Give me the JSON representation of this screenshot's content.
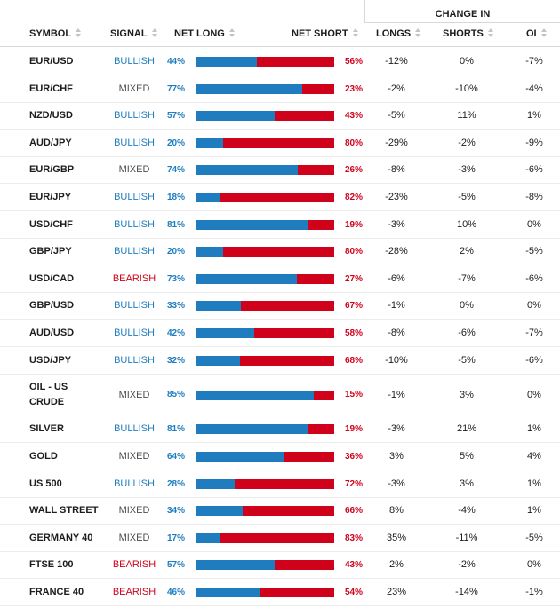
{
  "headers": {
    "change_in": "CHANGE IN",
    "symbol": "SYMBOL",
    "signal": "SIGNAL",
    "net_long": "NET LONG",
    "net_short": "NET SHORT",
    "longs": "LONGS",
    "shorts": "SHORTS",
    "oi": "OI"
  },
  "colors": {
    "long": "#1f7dbf",
    "short": "#d0021b",
    "bullish": "#1f7dbf",
    "bearish": "#d0021b",
    "mixed": "#4d4d4d"
  },
  "rows": [
    {
      "symbol": "EUR/USD",
      "signal": "BULLISH",
      "net_long": "44%",
      "net_short": "56%",
      "long_pct": 44,
      "longs": "-12%",
      "shorts": "0%",
      "oi": "-7%"
    },
    {
      "symbol": "EUR/CHF",
      "signal": "MIXED",
      "net_long": "77%",
      "net_short": "23%",
      "long_pct": 77,
      "longs": "-2%",
      "shorts": "-10%",
      "oi": "-4%"
    },
    {
      "symbol": "NZD/USD",
      "signal": "BULLISH",
      "net_long": "57%",
      "net_short": "43%",
      "long_pct": 57,
      "longs": "-5%",
      "shorts": "11%",
      "oi": "1%"
    },
    {
      "symbol": "AUD/JPY",
      "signal": "BULLISH",
      "net_long": "20%",
      "net_short": "80%",
      "long_pct": 20,
      "longs": "-29%",
      "shorts": "-2%",
      "oi": "-9%"
    },
    {
      "symbol": "EUR/GBP",
      "signal": "MIXED",
      "net_long": "74%",
      "net_short": "26%",
      "long_pct": 74,
      "longs": "-8%",
      "shorts": "-3%",
      "oi": "-6%"
    },
    {
      "symbol": "EUR/JPY",
      "signal": "BULLISH",
      "net_long": "18%",
      "net_short": "82%",
      "long_pct": 18,
      "longs": "-23%",
      "shorts": "-5%",
      "oi": "-8%"
    },
    {
      "symbol": "USD/CHF",
      "signal": "BULLISH",
      "net_long": "81%",
      "net_short": "19%",
      "long_pct": 81,
      "longs": "-3%",
      "shorts": "10%",
      "oi": "0%"
    },
    {
      "symbol": "GBP/JPY",
      "signal": "BULLISH",
      "net_long": "20%",
      "net_short": "80%",
      "long_pct": 20,
      "longs": "-28%",
      "shorts": "2%",
      "oi": "-5%"
    },
    {
      "symbol": "USD/CAD",
      "signal": "BEARISH",
      "net_long": "73%",
      "net_short": "27%",
      "long_pct": 73,
      "longs": "-6%",
      "shorts": "-7%",
      "oi": "-6%"
    },
    {
      "symbol": "GBP/USD",
      "signal": "BULLISH",
      "net_long": "33%",
      "net_short": "67%",
      "long_pct": 33,
      "longs": "-1%",
      "shorts": "0%",
      "oi": "0%"
    },
    {
      "symbol": "AUD/USD",
      "signal": "BULLISH",
      "net_long": "42%",
      "net_short": "58%",
      "long_pct": 42,
      "longs": "-8%",
      "shorts": "-6%",
      "oi": "-7%"
    },
    {
      "symbol": "USD/JPY",
      "signal": "BULLISH",
      "net_long": "32%",
      "net_short": "68%",
      "long_pct": 32,
      "longs": "-10%",
      "shorts": "-5%",
      "oi": "-6%"
    },
    {
      "symbol": "OIL - US CRUDE",
      "signal": "MIXED",
      "net_long": "85%",
      "net_short": "15%",
      "long_pct": 85,
      "longs": "-1%",
      "shorts": "3%",
      "oi": "0%"
    },
    {
      "symbol": "SILVER",
      "signal": "BULLISH",
      "net_long": "81%",
      "net_short": "19%",
      "long_pct": 81,
      "longs": "-3%",
      "shorts": "21%",
      "oi": "1%"
    },
    {
      "symbol": "GOLD",
      "signal": "MIXED",
      "net_long": "64%",
      "net_short": "36%",
      "long_pct": 64,
      "longs": "3%",
      "shorts": "5%",
      "oi": "4%"
    },
    {
      "symbol": "US 500",
      "signal": "BULLISH",
      "net_long": "28%",
      "net_short": "72%",
      "long_pct": 28,
      "longs": "-3%",
      "shorts": "3%",
      "oi": "1%"
    },
    {
      "symbol": "WALL STREET",
      "signal": "MIXED",
      "net_long": "34%",
      "net_short": "66%",
      "long_pct": 34,
      "longs": "8%",
      "shorts": "-4%",
      "oi": "1%"
    },
    {
      "symbol": "GERMANY 40",
      "signal": "MIXED",
      "net_long": "17%",
      "net_short": "83%",
      "long_pct": 17,
      "longs": "35%",
      "shorts": "-11%",
      "oi": "-5%"
    },
    {
      "symbol": "FTSE 100",
      "signal": "BEARISH",
      "net_long": "57%",
      "net_short": "43%",
      "long_pct": 57,
      "longs": "2%",
      "shorts": "-2%",
      "oi": "0%"
    },
    {
      "symbol": "FRANCE 40",
      "signal": "BEARISH",
      "net_long": "46%",
      "net_short": "54%",
      "long_pct": 46,
      "longs": "23%",
      "shorts": "-14%",
      "oi": "-1%"
    }
  ]
}
